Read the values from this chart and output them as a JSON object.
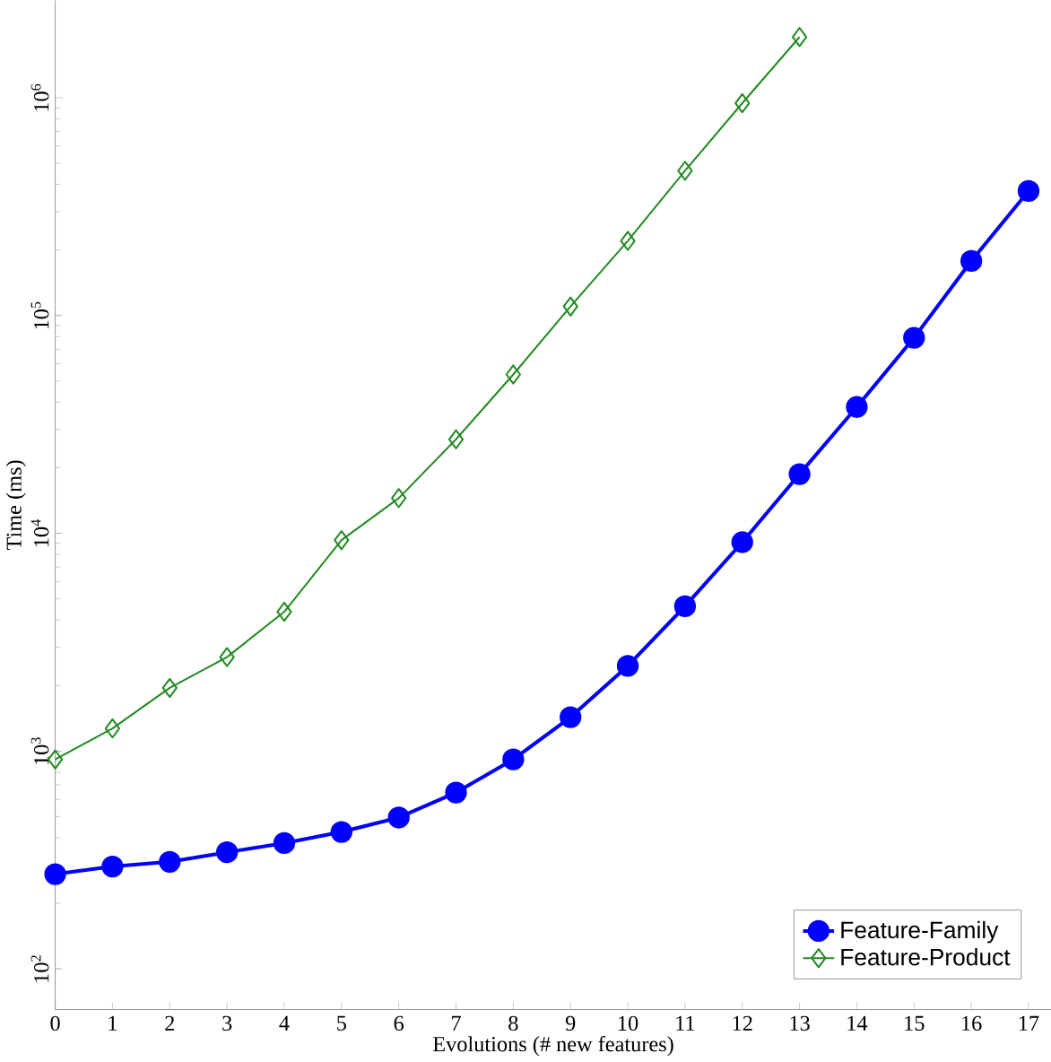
{
  "chart_data": {
    "type": "line",
    "xlabel": "Evolutions (# new features)",
    "ylabel": "Time (ms)",
    "x": [
      0,
      1,
      2,
      3,
      4,
      5,
      6,
      7,
      8,
      9,
      10,
      11,
      12,
      13,
      14,
      15,
      16,
      17
    ],
    "series": [
      {
        "name": "Feature-Family",
        "color": "#0000ff",
        "marker": "circle",
        "values": [
          272,
          295,
          310,
          343,
          378,
          425,
          495,
          645,
          915,
          1430,
          2460,
          4620,
          9100,
          18700,
          38000,
          79000,
          178000,
          373000
        ]
      },
      {
        "name": "Feature-Product",
        "color": "#228b22",
        "marker": "diamond",
        "values": [
          915,
          1270,
          1950,
          2700,
          4360,
          9300,
          14500,
          27000,
          53600,
          110000,
          220000,
          462000,
          944000,
          1900000,
          null,
          null,
          null,
          null
        ]
      }
    ],
    "log": "y",
    "xlim": [
      0,
      17.4
    ],
    "ylim": [
      65,
      2800000
    ],
    "xticks": [
      0,
      1,
      2,
      3,
      4,
      5,
      6,
      7,
      8,
      9,
      10,
      11,
      12,
      13,
      14,
      15,
      16,
      17
    ],
    "yticks": [
      {
        "value": 100,
        "label": "10$^{2}$"
      },
      {
        "value": 1000,
        "label": "10$^{3}$"
      },
      {
        "value": 10000,
        "label": "10$^{4}$"
      },
      {
        "value": 100000,
        "label": "10$^{5}$"
      },
      {
        "value": 1000000,
        "label": "10$^{6}$"
      }
    ],
    "legend": "bottom right",
    "grid": false
  }
}
